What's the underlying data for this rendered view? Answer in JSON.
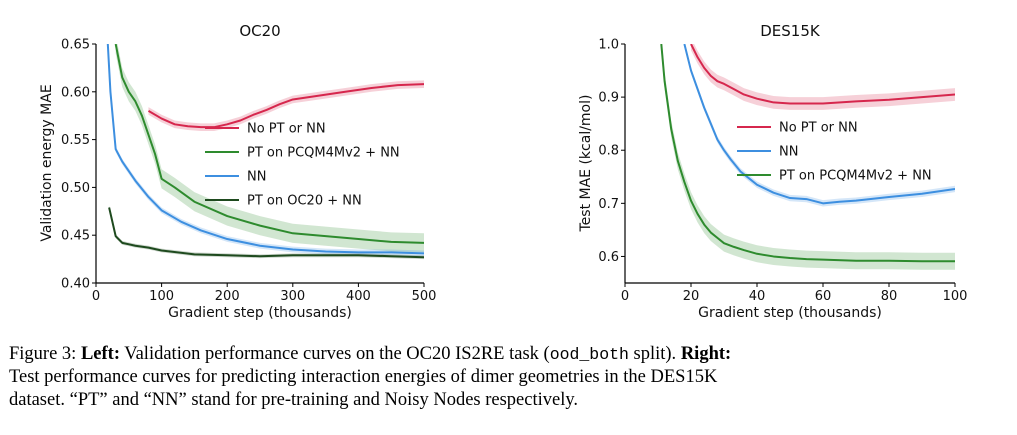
{
  "chart_data": [
    {
      "type": "line",
      "title": "OC20",
      "xlabel": "Gradient step (thousands)",
      "ylabel": "Validation energy MAE",
      "xlim": [
        0,
        500
      ],
      "ylim": [
        0.4,
        0.65
      ],
      "xticks": [
        "0",
        "100",
        "200",
        "300",
        "400",
        "500"
      ],
      "yticks": [
        "0.40",
        "0.45",
        "0.50",
        "0.55",
        "0.60",
        "0.65"
      ],
      "legend_position": "center-right",
      "series": [
        {
          "name": "No PT or NN",
          "color": "#d6274d",
          "band": 0.004,
          "x": [
            80,
            100,
            120,
            140,
            160,
            180,
            200,
            220,
            240,
            260,
            280,
            300,
            340,
            380,
            420,
            460,
            500
          ],
          "y": [
            0.58,
            0.572,
            0.566,
            0.564,
            0.563,
            0.563,
            0.566,
            0.57,
            0.576,
            0.581,
            0.587,
            0.592,
            0.596,
            0.6,
            0.604,
            0.607,
            0.608
          ]
        },
        {
          "name": "PT on PCQM4Mv2 + NN",
          "color": "#2e8b2e",
          "band": 0.01,
          "x": [
            30,
            40,
            50,
            60,
            70,
            80,
            90,
            100,
            120,
            150,
            200,
            250,
            300,
            350,
            400,
            450,
            500
          ],
          "y": [
            0.65,
            0.615,
            0.6,
            0.59,
            0.575,
            0.555,
            0.535,
            0.509,
            0.5,
            0.485,
            0.47,
            0.46,
            0.452,
            0.449,
            0.446,
            0.443,
            0.442
          ]
        },
        {
          "name": "NN",
          "color": "#3d8fe0",
          "band": 0.003,
          "x": [
            18,
            22,
            30,
            40,
            60,
            80,
            100,
            130,
            160,
            200,
            250,
            300,
            350,
            400,
            450,
            500
          ],
          "y": [
            0.65,
            0.6,
            0.54,
            0.527,
            0.507,
            0.49,
            0.476,
            0.464,
            0.455,
            0.446,
            0.439,
            0.435,
            0.433,
            0.432,
            0.432,
            0.431
          ]
        },
        {
          "name": "PT on OC20 + NN",
          "color": "#1e4a1e",
          "band": 0.002,
          "x": [
            20,
            30,
            40,
            60,
            80,
            100,
            150,
            200,
            250,
            300,
            350,
            400,
            450,
            500
          ],
          "y": [
            0.479,
            0.449,
            0.442,
            0.439,
            0.437,
            0.434,
            0.43,
            0.429,
            0.428,
            0.429,
            0.429,
            0.429,
            0.428,
            0.427
          ]
        }
      ]
    },
    {
      "type": "line",
      "title": "DES15K",
      "xlabel": "Gradient step (thousands)",
      "ylabel": "Test MAE (kcal/mol)",
      "xlim": [
        0,
        100
      ],
      "ylim": [
        0.55,
        1.0
      ],
      "xticks": [
        "0",
        "20",
        "40",
        "60",
        "80",
        "100"
      ],
      "yticks": [
        "0.6",
        "0.7",
        "0.8",
        "0.9",
        "1.0"
      ],
      "legend_position": "right",
      "series": [
        {
          "name": "No PT or NN",
          "color": "#d6274d",
          "band": 0.012,
          "x": [
            20,
            22,
            24,
            26,
            28,
            30,
            33,
            36,
            40,
            45,
            50,
            55,
            60,
            70,
            80,
            90,
            100
          ],
          "y": [
            1.0,
            0.975,
            0.955,
            0.94,
            0.93,
            0.925,
            0.915,
            0.905,
            0.897,
            0.89,
            0.888,
            0.888,
            0.888,
            0.892,
            0.895,
            0.9,
            0.905
          ]
        },
        {
          "name": "NN",
          "color": "#3d8fe0",
          "band": 0.006,
          "x": [
            18,
            20,
            22,
            24,
            26,
            28,
            30,
            32,
            35,
            38,
            40,
            45,
            50,
            55,
            60,
            65,
            70,
            80,
            90,
            100
          ],
          "y": [
            1.0,
            0.95,
            0.915,
            0.88,
            0.85,
            0.82,
            0.8,
            0.783,
            0.76,
            0.745,
            0.735,
            0.72,
            0.71,
            0.708,
            0.7,
            0.703,
            0.705,
            0.712,
            0.718,
            0.727
          ]
        },
        {
          "name": "PT on PCQM4Mv2 + NN",
          "color": "#2e8b2e",
          "band": 0.016,
          "x": [
            11,
            12,
            14,
            16,
            18,
            20,
            22,
            24,
            26,
            28,
            30,
            33,
            36,
            40,
            45,
            50,
            55,
            60,
            70,
            80,
            90,
            100
          ],
          "y": [
            1.0,
            0.93,
            0.84,
            0.78,
            0.74,
            0.705,
            0.68,
            0.66,
            0.645,
            0.635,
            0.625,
            0.618,
            0.612,
            0.605,
            0.6,
            0.597,
            0.595,
            0.594,
            0.592,
            0.592,
            0.591,
            0.591
          ]
        }
      ]
    }
  ],
  "caption": {
    "line1_lead": "Figure 3: ",
    "line1_left_bold": "Left:",
    "line1_text_a": " Validation performance curves on the OC20 IS2RE task (",
    "line1_mono": "ood_both",
    "line1_text_b": " split). ",
    "line1_right_bold": "Right:",
    "line2": "Test performance curves for predicting interaction energies of dimer geometries in the DES15K",
    "line3": "dataset. “PT” and “NN” stand for pre-training and Noisy Nodes respectively."
  }
}
